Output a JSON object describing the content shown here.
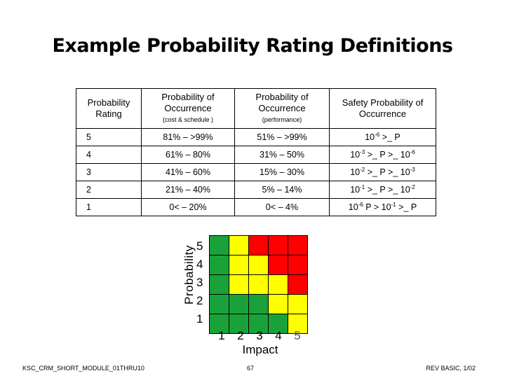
{
  "title": "Example Probability Rating Definitions",
  "table": {
    "headers": {
      "rating": "Probability Rating",
      "occ_cost": "Probability of Occurrence",
      "occ_cost_note": "(cost & schedule )",
      "occ_perf": "Probability of Occurrence",
      "occ_perf_note": "(performance)",
      "safety": "Safety Probability of Occurrence"
    },
    "rows": [
      {
        "rating": "5",
        "cost": "81% – >99%",
        "perf": "51% – >99%",
        "safety": "10-6 >_ P"
      },
      {
        "rating": "4",
        "cost": "61% – 80%",
        "perf": "31% – 50%",
        "safety": "10-3 >_ P >_ 10-6"
      },
      {
        "rating": "3",
        "cost": "41% – 60%",
        "perf": "15% – 30%",
        "safety": "10-2 >_ P >_ 10-3"
      },
      {
        "rating": "2",
        "cost": "21% – 40%",
        "perf": "5% – 14%",
        "safety": "10-1 >_ P >_ 10-2"
      },
      {
        "rating": "1",
        "cost": "0< – 20%",
        "perf": "0< – 4%",
        "safety": "10-6 P > 10-1 >_ P"
      }
    ]
  },
  "matrix": {
    "ylabel": "Probability",
    "xlabel": "Impact",
    "y_ticks": [
      "5",
      "4",
      "3",
      "2",
      "1"
    ],
    "x_ticks": [
      "1",
      "2",
      "3",
      "4",
      "5"
    ],
    "colors": {
      "green": "#1aa23a",
      "yellow": "#ffff00",
      "red": "#ff0000"
    },
    "grid": [
      [
        "green",
        "yellow",
        "red",
        "red",
        "red"
      ],
      [
        "green",
        "yellow",
        "yellow",
        "red",
        "red"
      ],
      [
        "green",
        "yellow",
        "yellow",
        "yellow",
        "red"
      ],
      [
        "green",
        "green",
        "green",
        "yellow",
        "yellow"
      ],
      [
        "green",
        "green",
        "green",
        "green",
        "yellow"
      ]
    ]
  },
  "footer": {
    "left": "KSC_CRM_SHORT_MODULE_01THRU10",
    "center": "67",
    "right": "REV BASIC, 1/02"
  }
}
